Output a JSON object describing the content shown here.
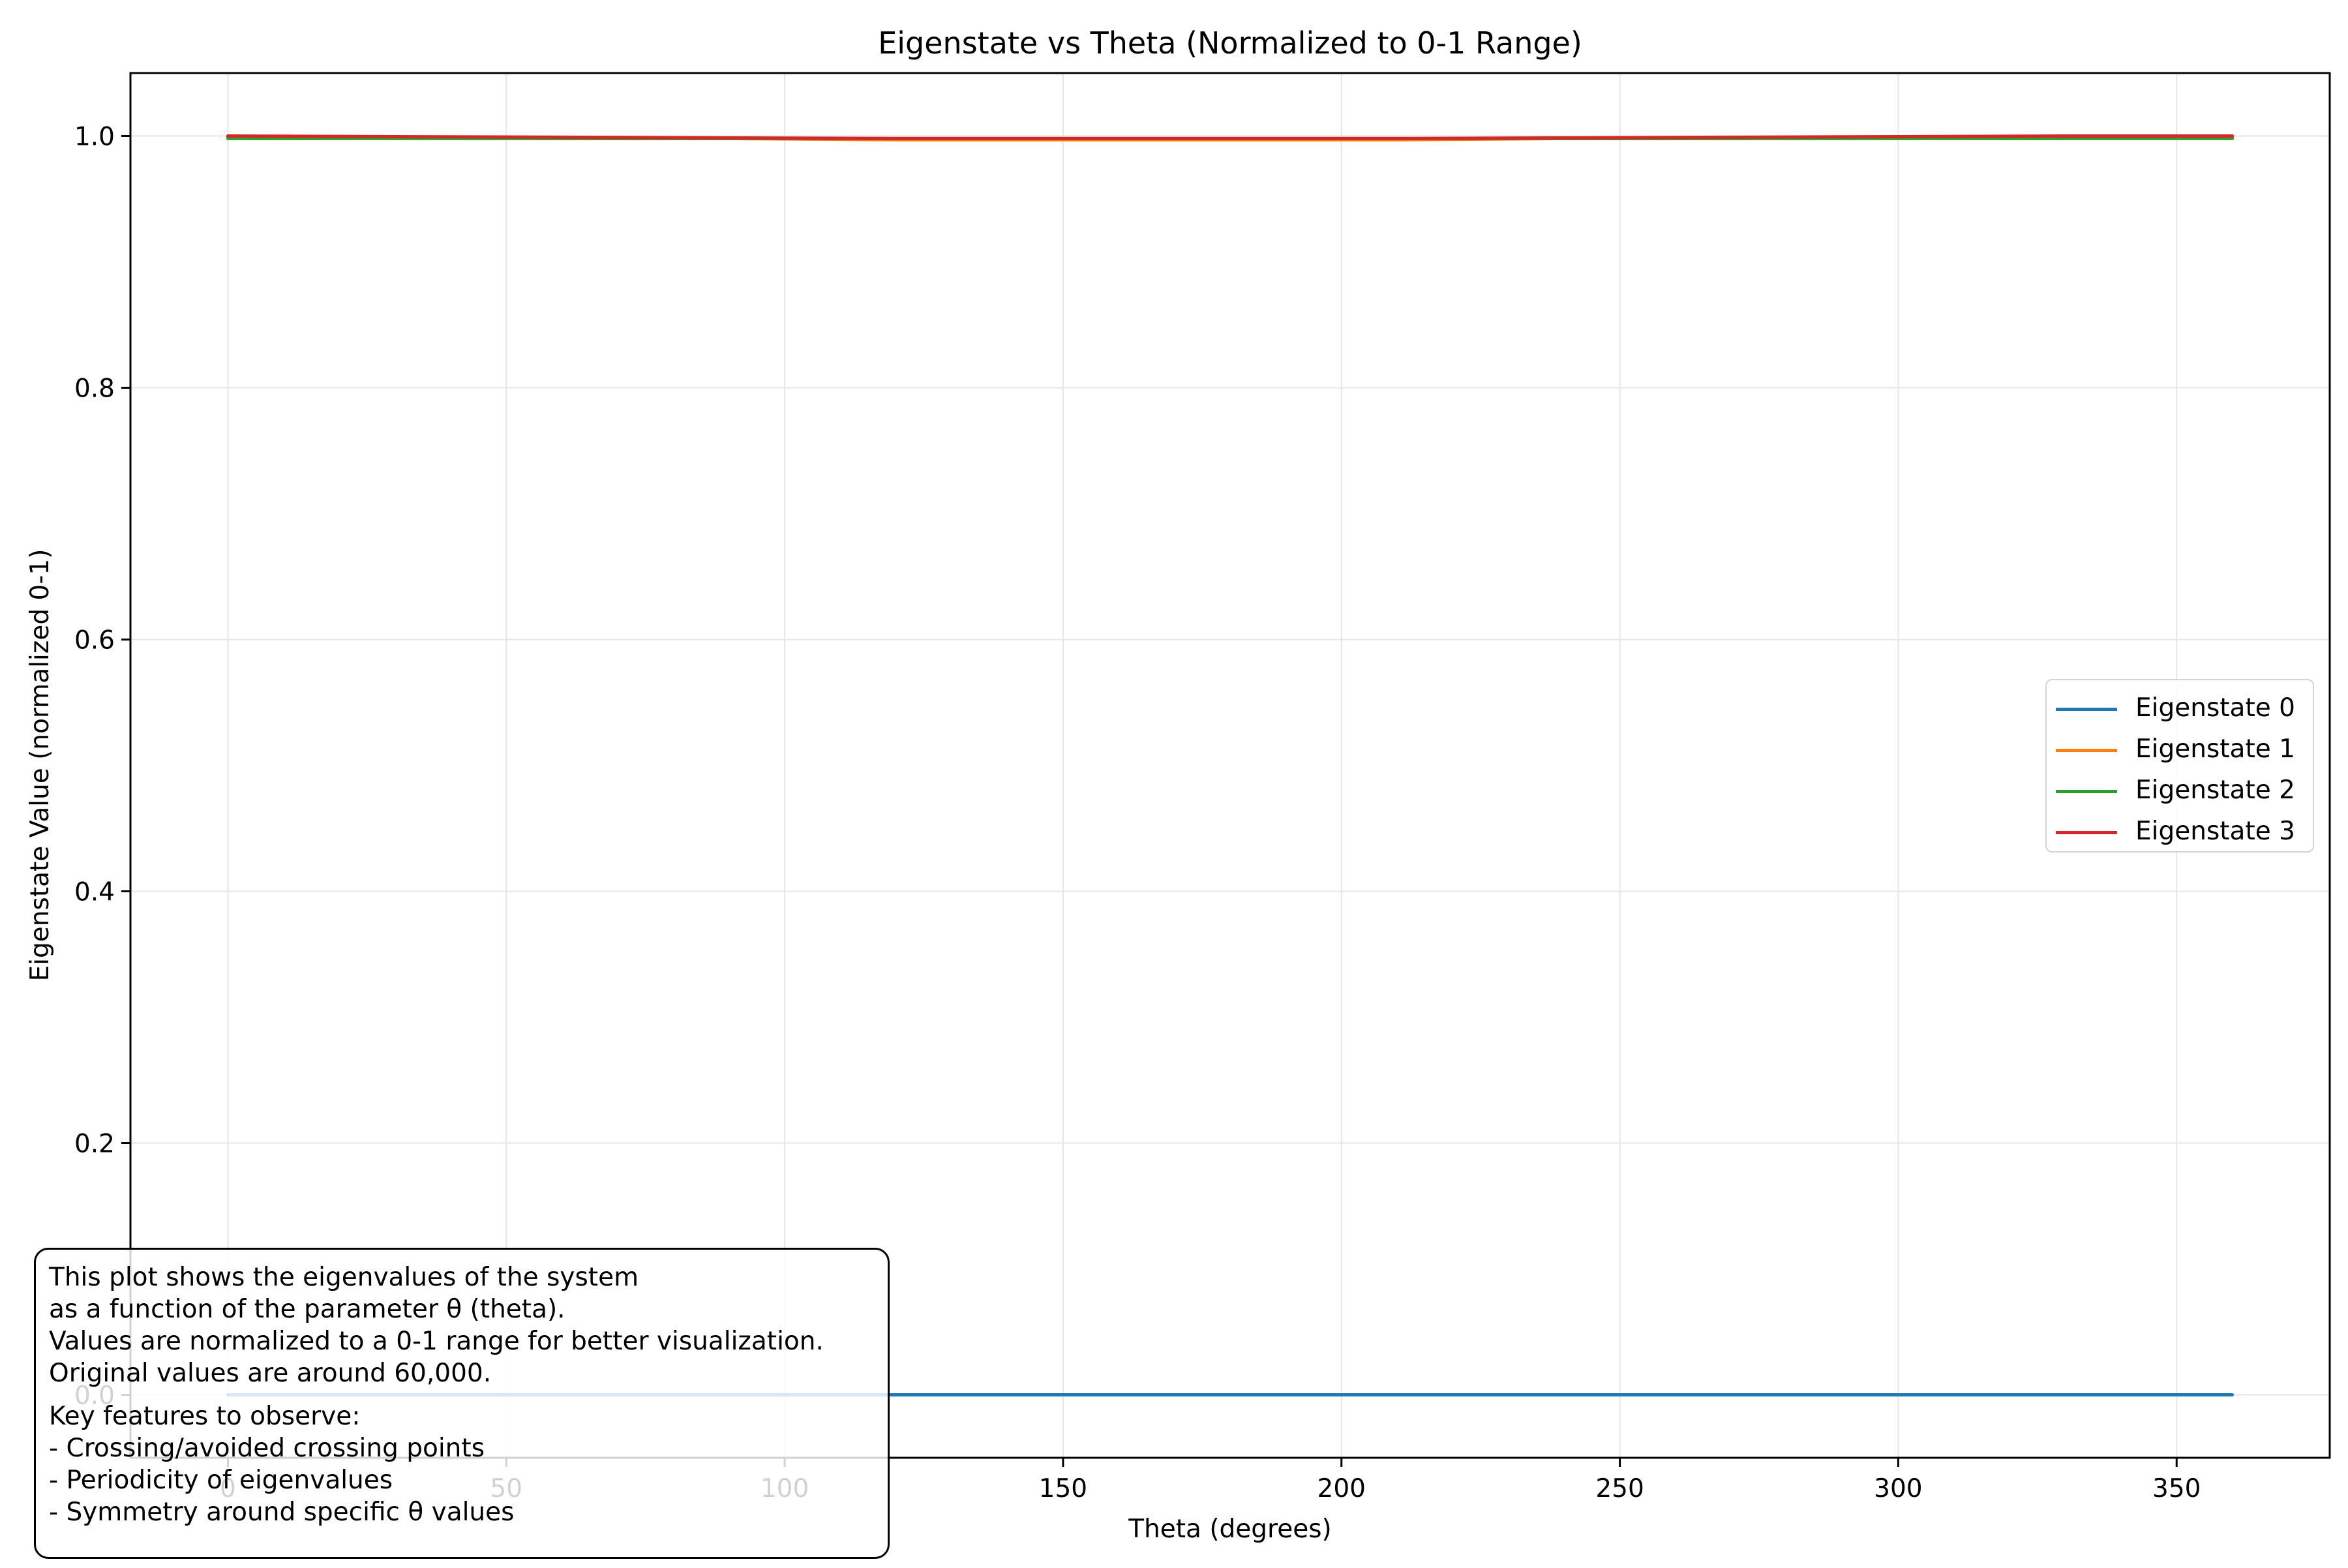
{
  "chart_data": {
    "type": "line",
    "title": "Eigenstate vs Theta (Normalized to 0-1 Range)",
    "xlabel": "Theta (degrees)",
    "ylabel": "Eigenstate Value (normalized 0-1)",
    "xlim": [
      -17.5,
      377.5
    ],
    "ylim": [
      -0.05,
      1.05
    ],
    "x_ticks": [
      0,
      50,
      100,
      150,
      200,
      250,
      300,
      350
    ],
    "y_ticks": [
      0.0,
      0.2,
      0.4,
      0.6,
      0.8,
      1.0
    ],
    "x_tick_labels": [
      "0",
      "50",
      "100",
      "150",
      "200",
      "250",
      "300",
      "350"
    ],
    "y_tick_labels": [
      "0.0",
      "0.2",
      "0.4",
      "0.6",
      "0.8",
      "1.0"
    ],
    "grid": true,
    "legend_position": "center-right",
    "x": [
      0,
      30,
      60,
      90,
      120,
      150,
      180,
      210,
      240,
      270,
      300,
      330,
      360
    ],
    "series": [
      {
        "name": "Eigenstate 0",
        "color": "#1f77b4",
        "values": [
          0,
          0,
          0,
          0,
          0,
          0,
          0,
          0,
          0,
          0,
          0,
          0,
          0
        ]
      },
      {
        "name": "Eigenstate 1",
        "color": "#ff7f0e",
        "values": [
          0.999,
          0.999,
          0.998,
          0.998,
          0.997,
          0.997,
          0.997,
          0.997,
          0.998,
          0.998,
          0.999,
          0.999,
          0.999
        ]
      },
      {
        "name": "Eigenstate 2",
        "color": "#2ca02c",
        "values": [
          0.998,
          0.998,
          0.998,
          0.998,
          0.998,
          0.998,
          0.998,
          0.998,
          0.998,
          0.998,
          0.998,
          0.998,
          0.998
        ]
      },
      {
        "name": "Eigenstate 3",
        "color": "#d62728",
        "values": [
          1.0,
          0.9995,
          0.999,
          0.9985,
          0.998,
          0.998,
          0.998,
          0.998,
          0.9985,
          0.999,
          0.9995,
          1.0,
          1.0
        ]
      }
    ],
    "annotation_lines": [
      "This plot shows the eigenvalues of the system",
      "as a function of the parameter θ (theta).",
      "Values are normalized to a 0-1 range for better visualization.",
      "Original values are around 60,000.",
      "",
      "Key features to observe:",
      "- Crossing/avoided crossing points",
      "- Periodicity of eigenvalues",
      "- Symmetry around specific θ values"
    ]
  }
}
